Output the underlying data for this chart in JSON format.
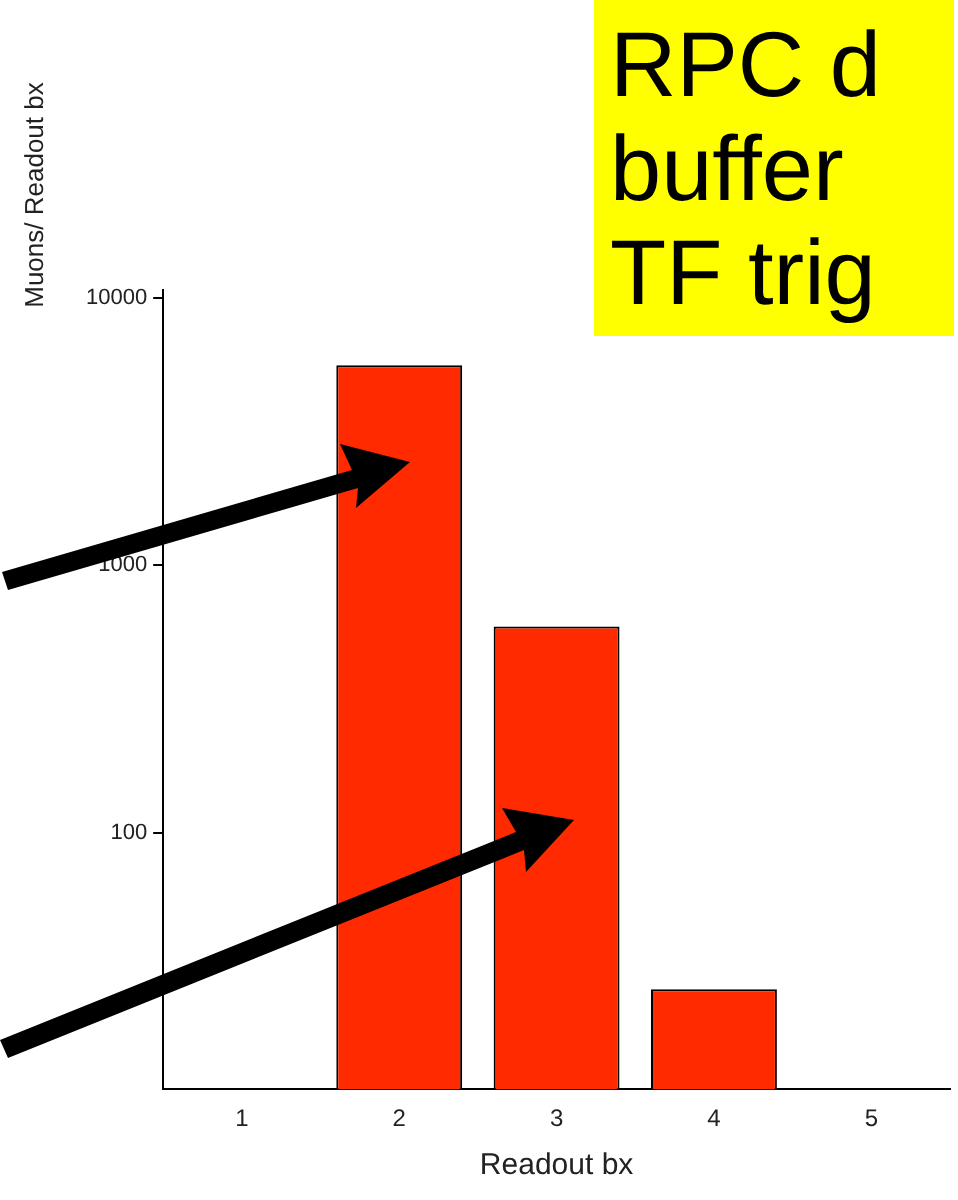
{
  "chart_data": {
    "type": "bar",
    "xlabel": "Readout bx",
    "ylabel": "Muons/ Readout bx",
    "categories": [
      "1",
      "2",
      "3",
      "4",
      "5"
    ],
    "values": [
      null,
      5600,
      590,
      26,
      null
    ],
    "color": "#ff2a00",
    "log": "y",
    "ylim": [
      11,
      10700
    ],
    "yticks": [
      100,
      1000,
      10000
    ],
    "grid": false,
    "annotations": [
      "RPC d",
      "buffer",
      "TF trig"
    ]
  }
}
